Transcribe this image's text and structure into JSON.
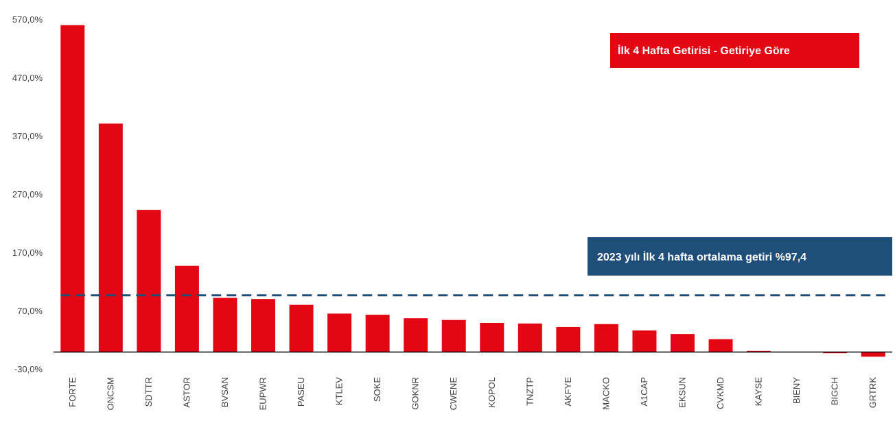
{
  "chart_data": {
    "type": "bar",
    "categories": [
      "FORTE",
      "ONCSM",
      "SDTTR",
      "ASTOR",
      "BVSAN",
      "EUPWR",
      "PASEU",
      "KTLEV",
      "SOKE",
      "GOKNR",
      "CWENE",
      "KOPOL",
      "TNZTP",
      "AKFYE",
      "MACKO",
      "A1CAP",
      "EKSUN",
      "CVKMD",
      "KAYSE",
      "BIENY",
      "BIGCH",
      "GRTRK"
    ],
    "values": [
      561,
      392,
      244,
      148,
      93,
      91,
      81,
      66,
      64,
      58,
      55,
      50,
      49,
      43,
      48,
      37,
      31,
      22,
      2,
      0,
      -2,
      -8
    ],
    "ylim": [
      -30,
      570
    ],
    "yticks": [
      -30,
      70,
      170,
      270,
      370,
      470,
      570
    ],
    "ytick_labels": [
      "-30,0%",
      "70,0%",
      "170,0%",
      "270,0%",
      "370,0%",
      "470,0%",
      "570,0%"
    ],
    "reference_line": {
      "value": 97.4,
      "style": "dashed"
    },
    "colors": {
      "bar": "#e30613",
      "reference_line": "#1f4e79",
      "zero_line": "#000000"
    },
    "title_box": {
      "text": "İlk 4 Hafta Getirisi - Getiriye Göre",
      "color": "#e30613"
    },
    "average_box": {
      "text": "2023 yılı İlk 4 hafta ortalama getiri  %97,4",
      "color": "#1f4e79"
    }
  }
}
